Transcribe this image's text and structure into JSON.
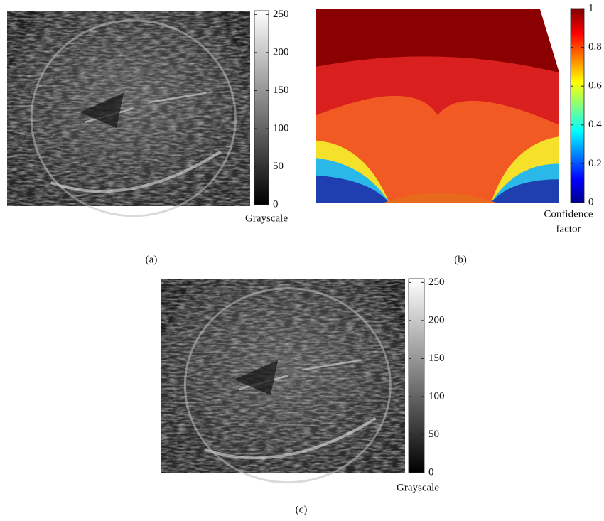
{
  "panels": [
    {
      "caption": "(a)",
      "colorbar": {
        "label": [
          "Grayscale"
        ],
        "lim": [
          0,
          255
        ],
        "ticks": [
          0,
          50,
          100,
          150,
          200,
          250
        ]
      }
    },
    {
      "caption": "(b)",
      "colorbar": {
        "label": [
          "Confidence",
          "factor"
        ],
        "lim": [
          0,
          1
        ],
        "ticks": [
          0,
          0.2,
          0.4,
          0.6,
          0.8,
          1
        ]
      }
    },
    {
      "caption": "(c)",
      "colorbar": {
        "label": [
          "Grayscale"
        ],
        "lim": [
          0,
          255
        ],
        "ticks": [
          0,
          50,
          100,
          150,
          200,
          250
        ]
      }
    }
  ]
}
